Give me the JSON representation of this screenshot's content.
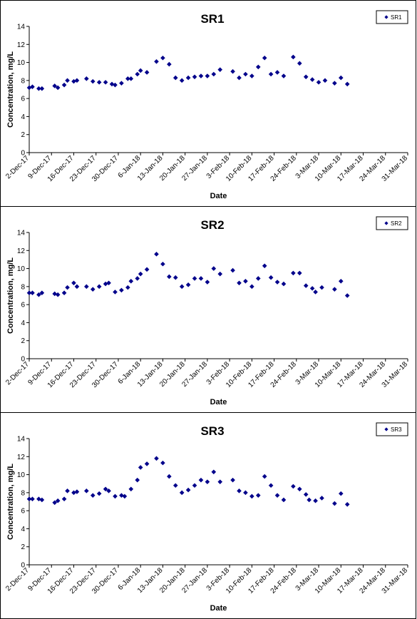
{
  "chart_data": [
    {
      "type": "scatter",
      "title": "SR1",
      "xlabel": "Date",
      "ylabel": "Concentration, mg/L",
      "ylim": [
        0,
        14
      ],
      "yticks": [
        "0",
        "2",
        "4",
        "6",
        "8",
        "10",
        "12",
        "14"
      ],
      "xticks": [
        "2-Dec-17",
        "9-Dec-17",
        "16-Dec-17",
        "23-Dec-17",
        "30-Dec-17",
        "6-Jan-18",
        "13-Jan-18",
        "20-Jan-18",
        "27-Jan-18",
        "3-Feb-18",
        "10-Feb-18",
        "17-Feb-18",
        "24-Feb-18",
        "3-Mar-18",
        "10-Mar-18",
        "17-Mar-18",
        "24-Mar-18",
        "31-Mar-18"
      ],
      "legend": "top-right",
      "grid": false,
      "color": "#00008B",
      "series": [
        {
          "name": "SR1",
          "points": [
            [
              "2-Dec-17",
              7.2
            ],
            [
              "3-Dec-17",
              7.3
            ],
            [
              "5-Dec-17",
              7.1
            ],
            [
              "6-Dec-17",
              7.1
            ],
            [
              "10-Dec-17",
              7.4
            ],
            [
              "11-Dec-17",
              7.2
            ],
            [
              "13-Dec-17",
              7.5
            ],
            [
              "14-Dec-17",
              8.0
            ],
            [
              "16-Dec-17",
              7.9
            ],
            [
              "17-Dec-17",
              8.0
            ],
            [
              "20-Dec-17",
              8.2
            ],
            [
              "22-Dec-17",
              7.9
            ],
            [
              "24-Dec-17",
              7.8
            ],
            [
              "26-Dec-17",
              7.8
            ],
            [
              "28-Dec-17",
              7.6
            ],
            [
              "29-Dec-17",
              7.5
            ],
            [
              "31-Dec-17",
              7.7
            ],
            [
              "2-Jan-18",
              8.2
            ],
            [
              "3-Jan-18",
              8.2
            ],
            [
              "5-Jan-18",
              8.7
            ],
            [
              "6-Jan-18",
              9.1
            ],
            [
              "8-Jan-18",
              8.9
            ],
            [
              "11-Jan-18",
              10.1
            ],
            [
              "13-Jan-18",
              10.5
            ],
            [
              "15-Jan-18",
              9.8
            ],
            [
              "17-Jan-18",
              8.3
            ],
            [
              "19-Jan-18",
              8.0
            ],
            [
              "21-Jan-18",
              8.3
            ],
            [
              "23-Jan-18",
              8.4
            ],
            [
              "25-Jan-18",
              8.5
            ],
            [
              "27-Jan-18",
              8.5
            ],
            [
              "29-Jan-18",
              8.7
            ],
            [
              "31-Jan-18",
              9.2
            ],
            [
              "4-Feb-18",
              9.0
            ],
            [
              "6-Feb-18",
              8.3
            ],
            [
              "8-Feb-18",
              8.7
            ],
            [
              "10-Feb-18",
              8.5
            ],
            [
              "12-Feb-18",
              9.5
            ],
            [
              "14-Feb-18",
              10.5
            ],
            [
              "16-Feb-18",
              8.7
            ],
            [
              "18-Feb-18",
              8.9
            ],
            [
              "20-Feb-18",
              8.5
            ],
            [
              "23-Feb-18",
              10.6
            ],
            [
              "25-Feb-18",
              9.9
            ],
            [
              "27-Feb-18",
              8.4
            ],
            [
              "1-Mar-18",
              8.1
            ],
            [
              "3-Mar-18",
              7.8
            ],
            [
              "5-Mar-18",
              8.0
            ],
            [
              "8-Mar-18",
              7.7
            ],
            [
              "10-Mar-18",
              8.3
            ],
            [
              "12-Mar-18",
              7.6
            ]
          ]
        }
      ]
    },
    {
      "type": "scatter",
      "title": "SR2",
      "xlabel": "Date",
      "ylabel": "Concentration, mg/L",
      "ylim": [
        0,
        14
      ],
      "yticks": [
        "0",
        "2",
        "4",
        "6",
        "8",
        "10",
        "12",
        "14"
      ],
      "xticks": [
        "2-Dec-17",
        "9-Dec-17",
        "16-Dec-17",
        "23-Dec-17",
        "30-Dec-17",
        "6-Jan-18",
        "13-Jan-18",
        "20-Jan-18",
        "27-Jan-18",
        "3-Feb-18",
        "10-Feb-18",
        "17-Feb-18",
        "24-Feb-18",
        "3-Mar-18",
        "10-Mar-18",
        "17-Mar-18",
        "24-Mar-18",
        "31-Mar-18"
      ],
      "legend": "top-right",
      "grid": false,
      "color": "#00008B",
      "series": [
        {
          "name": "SR2",
          "points": [
            [
              "2-Dec-17",
              7.3
            ],
            [
              "3-Dec-17",
              7.3
            ],
            [
              "5-Dec-17",
              7.1
            ],
            [
              "6-Dec-17",
              7.3
            ],
            [
              "10-Dec-17",
              7.2
            ],
            [
              "11-Dec-17",
              7.1
            ],
            [
              "13-Dec-17",
              7.3
            ],
            [
              "14-Dec-17",
              7.9
            ],
            [
              "16-Dec-17",
              8.4
            ],
            [
              "17-Dec-17",
              8.0
            ],
            [
              "20-Dec-17",
              8.0
            ],
            [
              "22-Dec-17",
              7.7
            ],
            [
              "24-Dec-17",
              8.0
            ],
            [
              "26-Dec-17",
              8.3
            ],
            [
              "27-Dec-17",
              8.4
            ],
            [
              "29-Dec-17",
              7.4
            ],
            [
              "31-Dec-17",
              7.6
            ],
            [
              "2-Jan-18",
              7.9
            ],
            [
              "3-Jan-18",
              8.6
            ],
            [
              "5-Jan-18",
              8.9
            ],
            [
              "6-Jan-18",
              9.4
            ],
            [
              "8-Jan-18",
              9.9
            ],
            [
              "11-Jan-18",
              11.6
            ],
            [
              "13-Jan-18",
              10.5
            ],
            [
              "15-Jan-18",
              9.1
            ],
            [
              "17-Jan-18",
              9.0
            ],
            [
              "19-Jan-18",
              8.0
            ],
            [
              "21-Jan-18",
              8.2
            ],
            [
              "23-Jan-18",
              8.9
            ],
            [
              "25-Jan-18",
              8.9
            ],
            [
              "27-Jan-18",
              8.5
            ],
            [
              "29-Jan-18",
              10.0
            ],
            [
              "31-Jan-18",
              9.4
            ],
            [
              "4-Feb-18",
              9.8
            ],
            [
              "6-Feb-18",
              8.4
            ],
            [
              "8-Feb-18",
              8.6
            ],
            [
              "10-Feb-18",
              8.0
            ],
            [
              "12-Feb-18",
              8.9
            ],
            [
              "14-Feb-18",
              10.3
            ],
            [
              "16-Feb-18",
              9.0
            ],
            [
              "18-Feb-18",
              8.5
            ],
            [
              "20-Feb-18",
              8.3
            ],
            [
              "23-Feb-18",
              9.5
            ],
            [
              "25-Feb-18",
              9.5
            ],
            [
              "27-Feb-18",
              8.1
            ],
            [
              "1-Mar-18",
              7.8
            ],
            [
              "2-Mar-18",
              7.4
            ],
            [
              "4-Mar-18",
              7.9
            ],
            [
              "8-Mar-18",
              7.7
            ],
            [
              "10-Mar-18",
              8.6
            ],
            [
              "12-Mar-18",
              7.0
            ]
          ]
        }
      ]
    },
    {
      "type": "scatter",
      "title": "SR3",
      "xlabel": "Date",
      "ylabel": "Concentration, mg/L",
      "ylim": [
        0,
        14
      ],
      "yticks": [
        "0",
        "2",
        "4",
        "6",
        "8",
        "10",
        "12",
        "14"
      ],
      "xticks": [
        "2-Dec-17",
        "9-Dec-17",
        "16-Dec-17",
        "23-Dec-17",
        "30-Dec-17",
        "6-Jan-18",
        "13-Jan-18",
        "20-Jan-18",
        "27-Jan-18",
        "3-Feb-18",
        "10-Feb-18",
        "17-Feb-18",
        "24-Feb-18",
        "3-Mar-18",
        "10-Mar-18",
        "17-Mar-18",
        "24-Mar-18",
        "31-Mar-18"
      ],
      "legend": "top-right",
      "grid": false,
      "color": "#00008B",
      "series": [
        {
          "name": "SR3",
          "points": [
            [
              "2-Dec-17",
              7.3
            ],
            [
              "3-Dec-17",
              7.3
            ],
            [
              "5-Dec-17",
              7.3
            ],
            [
              "6-Dec-17",
              7.2
            ],
            [
              "10-Dec-17",
              6.9
            ],
            [
              "11-Dec-17",
              7.1
            ],
            [
              "13-Dec-17",
              7.3
            ],
            [
              "14-Dec-17",
              8.2
            ],
            [
              "16-Dec-17",
              8.0
            ],
            [
              "17-Dec-17",
              8.1
            ],
            [
              "20-Dec-17",
              8.2
            ],
            [
              "22-Dec-17",
              7.7
            ],
            [
              "24-Dec-17",
              7.9
            ],
            [
              "26-Dec-17",
              8.4
            ],
            [
              "27-Dec-17",
              8.2
            ],
            [
              "29-Dec-17",
              7.6
            ],
            [
              "31-Dec-17",
              7.7
            ],
            [
              "1-Jan-18",
              7.6
            ],
            [
              "3-Jan-18",
              8.4
            ],
            [
              "5-Jan-18",
              9.4
            ],
            [
              "6-Jan-18",
              10.8
            ],
            [
              "8-Jan-18",
              11.2
            ],
            [
              "11-Jan-18",
              11.8
            ],
            [
              "13-Jan-18",
              11.3
            ],
            [
              "15-Jan-18",
              9.8
            ],
            [
              "17-Jan-18",
              8.8
            ],
            [
              "19-Jan-18",
              8.0
            ],
            [
              "21-Jan-18",
              8.3
            ],
            [
              "23-Jan-18",
              8.8
            ],
            [
              "25-Jan-18",
              9.4
            ],
            [
              "27-Jan-18",
              9.2
            ],
            [
              "29-Jan-18",
              10.3
            ],
            [
              "31-Jan-18",
              9.2
            ],
            [
              "4-Feb-18",
              9.4
            ],
            [
              "6-Feb-18",
              8.2
            ],
            [
              "8-Feb-18",
              8.0
            ],
            [
              "10-Feb-18",
              7.6
            ],
            [
              "12-Feb-18",
              7.7
            ],
            [
              "14-Feb-18",
              9.8
            ],
            [
              "16-Feb-18",
              8.8
            ],
            [
              "18-Feb-18",
              7.7
            ],
            [
              "20-Feb-18",
              7.2
            ],
            [
              "23-Feb-18",
              8.7
            ],
            [
              "25-Feb-18",
              8.4
            ],
            [
              "27-Feb-18",
              7.8
            ],
            [
              "28-Feb-18",
              7.2
            ],
            [
              "2-Mar-18",
              7.1
            ],
            [
              "4-Mar-18",
              7.4
            ],
            [
              "8-Mar-18",
              6.8
            ],
            [
              "10-Mar-18",
              7.9
            ],
            [
              "12-Mar-18",
              6.7
            ]
          ]
        }
      ]
    }
  ]
}
